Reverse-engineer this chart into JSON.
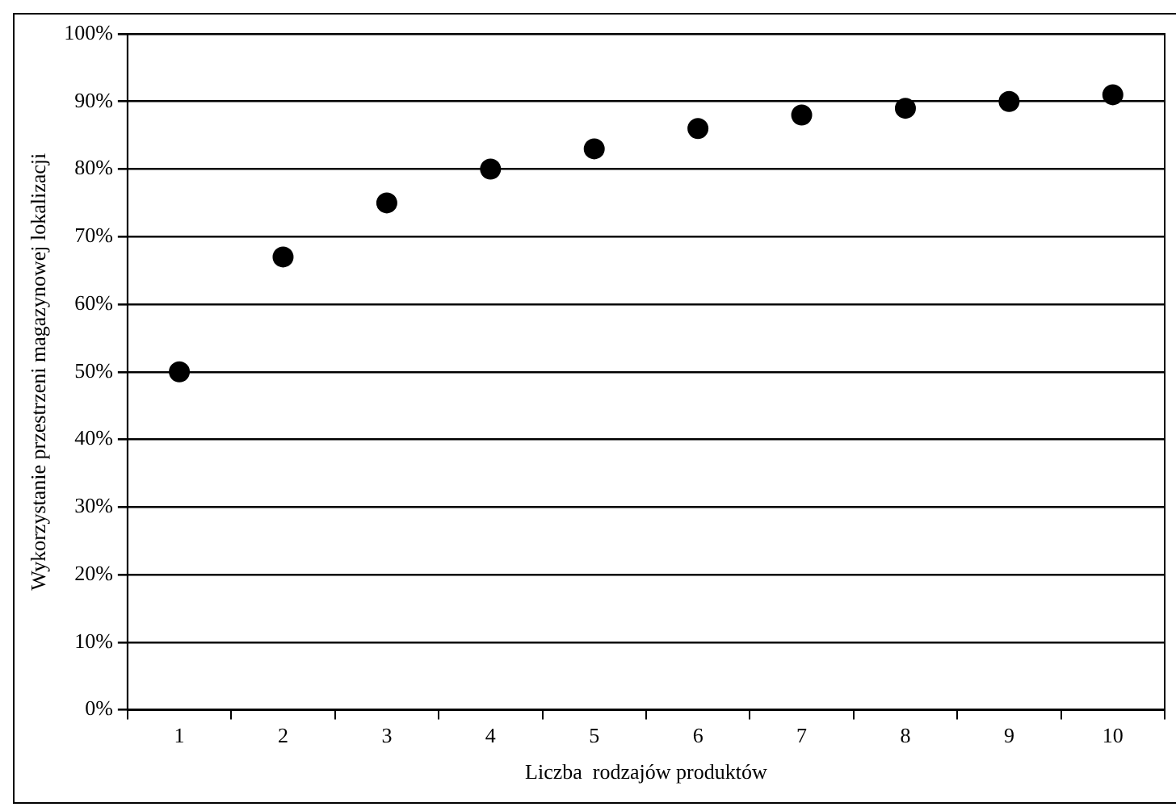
{
  "chart_data": {
    "type": "scatter",
    "xlabel": "Liczba  rodzajów produktów",
    "ylabel": "Wykorzystanie przestrzeni magazynowej lokalizacji",
    "categories": [
      "1",
      "2",
      "3",
      "4",
      "5",
      "6",
      "7",
      "8",
      "9",
      "10"
    ],
    "series": [
      {
        "color": "#000000",
        "values": [
          50,
          67,
          75,
          80,
          83,
          86,
          88,
          89,
          90,
          91
        ]
      }
    ],
    "ylim": [
      0,
      100
    ],
    "yticks": [
      {
        "value": 0,
        "label": "0%"
      },
      {
        "value": 10,
        "label": "10%"
      },
      {
        "value": 20,
        "label": "20%"
      },
      {
        "value": 30,
        "label": "30%"
      },
      {
        "value": 40,
        "label": "40%"
      },
      {
        "value": 50,
        "label": "50%"
      },
      {
        "value": 60,
        "label": "60%"
      },
      {
        "value": 70,
        "label": "70%"
      },
      {
        "value": 80,
        "label": "80%"
      },
      {
        "value": 90,
        "label": "90%"
      },
      {
        "value": 100,
        "label": "100%"
      }
    ],
    "grid": "y",
    "legend": false,
    "marker": "circle"
  }
}
